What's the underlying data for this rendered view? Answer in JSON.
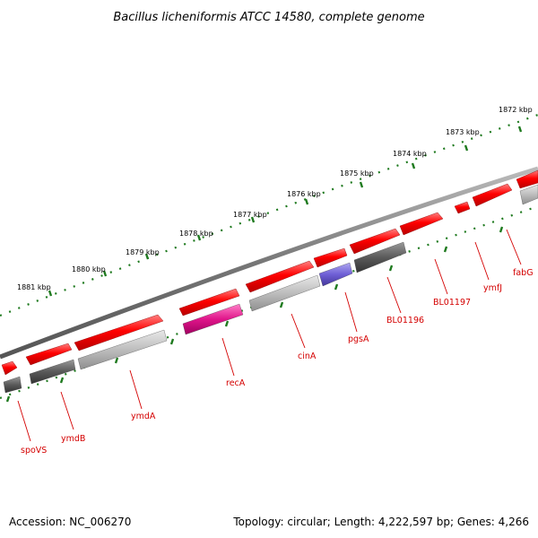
{
  "title": "Bacillus licheniformis ATCC 14580, complete genome",
  "colors": {
    "backbone": "#7a7a7a",
    "tick": "#1f7a1f",
    "label": "#d40000",
    "gene_red": "#ee0000",
    "gene_dark": "#5a5a5a",
    "gene_light": "#bdbdbd",
    "gene_magenta": "#e0158a",
    "gene_purple": "#6f5fd6"
  },
  "scale_labels": [
    "1881 kbp",
    "1880 kbp",
    "1879 kbp",
    "1878 kbp",
    "1877 kbp",
    "1876 kbp",
    "1875 kbp",
    "1874 kbp",
    "1873 kbp",
    "1872 kbp"
  ],
  "gene_labels": [
    "spoVS",
    "ymdB",
    "ymdA",
    "recA",
    "cinA",
    "pgsA",
    "BL01196",
    "BL01197",
    "ymfJ",
    "fabG"
  ],
  "footer": {
    "accession": "Accession: NC_006270",
    "stats": "Topology: circular; Length: 4,222,597 bp; Genes: 4,266"
  }
}
